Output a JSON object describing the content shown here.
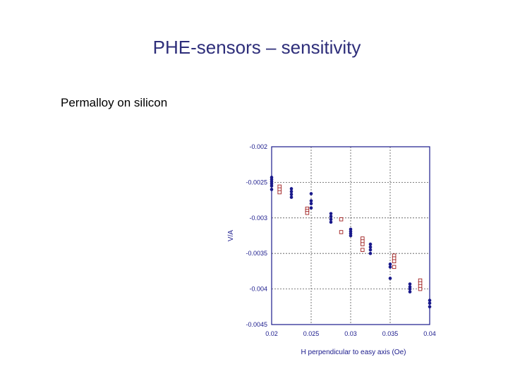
{
  "slide": {
    "title": "PHE-sensors – sensitivity",
    "subtitle": "Permalloy on silicon"
  },
  "colors": {
    "title": "#2e2e7a",
    "axis": "#1a1a8c",
    "grid": "#555555",
    "series_filled": "#1a1a8c",
    "series_open": "#a02020"
  },
  "chart_data": {
    "type": "scatter",
    "xlabel": "H perpendicular to easy axis (Oe)",
    "ylabel": "V/A",
    "xlim": [
      0.02,
      0.04
    ],
    "ylim": [
      -0.0045,
      -0.002
    ],
    "xticks": [
      0.02,
      0.025,
      0.03,
      0.035,
      0.04
    ],
    "xtick_labels": [
      "0.02",
      "0.025",
      "0.03",
      "0.035",
      "0.04"
    ],
    "yticks": [
      -0.002,
      -0.0025,
      -0.003,
      -0.0035,
      -0.004,
      -0.0045
    ],
    "ytick_labels": [
      "-0.002",
      "-0.0025",
      "-0.003",
      "-0.0035",
      "-0.004",
      "-0.0045"
    ],
    "grid": true,
    "legend": "none",
    "series": [
      {
        "marker": "filled-circle",
        "points": [
          [
            0.02,
            -0.00243
          ],
          [
            0.02,
            -0.00246
          ],
          [
            0.02,
            -0.00249
          ],
          [
            0.02,
            -0.00252
          ],
          [
            0.02,
            -0.00255
          ],
          [
            0.02,
            -0.0026
          ],
          [
            0.0225,
            -0.00259
          ],
          [
            0.0225,
            -0.00263
          ],
          [
            0.0225,
            -0.00267
          ],
          [
            0.0225,
            -0.00271
          ],
          [
            0.025,
            -0.00266
          ],
          [
            0.025,
            -0.00276
          ],
          [
            0.025,
            -0.0028
          ],
          [
            0.025,
            -0.00286
          ],
          [
            0.0275,
            -0.00294
          ],
          [
            0.0275,
            -0.00298
          ],
          [
            0.0275,
            -0.00302
          ],
          [
            0.0275,
            -0.00306
          ],
          [
            0.03,
            -0.00316
          ],
          [
            0.03,
            -0.00319
          ],
          [
            0.03,
            -0.00322
          ],
          [
            0.03,
            -0.00325
          ],
          [
            0.0325,
            -0.00337
          ],
          [
            0.0325,
            -0.00341
          ],
          [
            0.0325,
            -0.00345
          ],
          [
            0.0325,
            -0.0035
          ],
          [
            0.035,
            -0.00365
          ],
          [
            0.035,
            -0.00369
          ],
          [
            0.035,
            -0.00385
          ],
          [
            0.0375,
            -0.00393
          ],
          [
            0.0375,
            -0.00397
          ],
          [
            0.0375,
            -0.004
          ],
          [
            0.0375,
            -0.00404
          ],
          [
            0.04,
            -0.00416
          ],
          [
            0.04,
            -0.0042
          ],
          [
            0.04,
            -0.00425
          ]
        ]
      },
      {
        "marker": "open-square",
        "points": [
          [
            0.021,
            -0.00256
          ],
          [
            0.021,
            -0.0026
          ],
          [
            0.021,
            -0.00264
          ],
          [
            0.0245,
            -0.00287
          ],
          [
            0.0245,
            -0.0029
          ],
          [
            0.0245,
            -0.00293
          ],
          [
            0.0288,
            -0.00302
          ],
          [
            0.0288,
            -0.0032
          ],
          [
            0.0315,
            -0.00329
          ],
          [
            0.0315,
            -0.00333
          ],
          [
            0.0315,
            -0.00337
          ],
          [
            0.0315,
            -0.00345
          ],
          [
            0.0355,
            -0.00353
          ],
          [
            0.0355,
            -0.00357
          ],
          [
            0.0355,
            -0.00361
          ],
          [
            0.0355,
            -0.00369
          ],
          [
            0.0388,
            -0.00388
          ],
          [
            0.0388,
            -0.00392
          ],
          [
            0.0388,
            -0.00396
          ],
          [
            0.0388,
            -0.004
          ]
        ]
      }
    ]
  }
}
